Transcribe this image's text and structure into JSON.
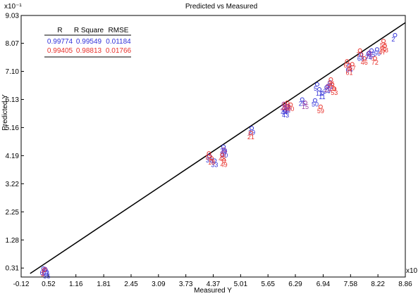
{
  "chart_data": {
    "type": "scatter",
    "title": "Predicted vs Measured",
    "xlabel": "Measured Y",
    "ylabel": "Predicted Y",
    "x_exponent": "x10",
    "y_exponent": "x10⁻¹",
    "xlim": [
      -0.12,
      8.86
    ],
    "ylim": [
      0,
      9.03
    ],
    "x_ticks": [
      "-0.12",
      "0.52",
      "1.16",
      "1.81",
      "2.45",
      "3.09",
      "3.73",
      "4.37",
      "5.01",
      "5.65",
      "6.29",
      "6.94",
      "7.58",
      "8.22",
      "8.86"
    ],
    "y_ticks": [
      "0.31",
      "1.28",
      "2.25",
      "3.22",
      "4.19",
      "5.16",
      "6.13",
      "7.10",
      "8.07",
      "9.03"
    ],
    "grid": false,
    "fit_line": {
      "x": [
        0.09,
        8.86
      ],
      "y": [
        0.12,
        8.78
      ]
    },
    "stats_table": {
      "headers": [
        "R",
        "R Square",
        "RMSE"
      ],
      "rows": [
        {
          "values": [
            "0.99774",
            "0.99549",
            "0.01184"
          ],
          "color": "#3030d8"
        },
        {
          "values": [
            "0.99405",
            "0.98813",
            "0.01766"
          ],
          "color": "#e8302a"
        }
      ]
    },
    "series": [
      {
        "color": "#3030d8",
        "points": [
          {
            "x": 0.4,
            "y": 0.29,
            "label": "6"
          },
          {
            "x": 0.45,
            "y": 0.25,
            "label": "51"
          },
          {
            "x": 0.48,
            "y": 0.17,
            "label": "35"
          },
          {
            "x": 4.28,
            "y": 4.18,
            "label": "32"
          },
          {
            "x": 4.4,
            "y": 4.02,
            "label": "33"
          },
          {
            "x": 4.61,
            "y": 4.5,
            "label": "20"
          },
          {
            "x": 4.63,
            "y": 4.34,
            "label": "30"
          },
          {
            "x": 5.27,
            "y": 5.14,
            "label": "39"
          },
          {
            "x": 6.03,
            "y": 5.82,
            "label": "44"
          },
          {
            "x": 6.06,
            "y": 5.73,
            "label": "43"
          },
          {
            "x": 6.09,
            "y": 5.9,
            "label": "41"
          },
          {
            "x": 6.45,
            "y": 6.13,
            "label": "25"
          },
          {
            "x": 6.75,
            "y": 6.1,
            "label": "50"
          },
          {
            "x": 6.8,
            "y": 6.65,
            "label": "5"
          },
          {
            "x": 6.85,
            "y": 6.48,
            "label": "12"
          },
          {
            "x": 6.92,
            "y": 6.36,
            "label": "11"
          },
          {
            "x": 7.02,
            "y": 6.55,
            "label": "34"
          },
          {
            "x": 7.1,
            "y": 6.72,
            "label": "31"
          },
          {
            "x": 7.55,
            "y": 7.3,
            "label": "64"
          },
          {
            "x": 7.82,
            "y": 7.68,
            "label": "68"
          },
          {
            "x": 8.0,
            "y": 7.72,
            "label": "74"
          },
          {
            "x": 8.07,
            "y": 7.82,
            "label": "65"
          },
          {
            "x": 8.2,
            "y": 7.86,
            "label": "56"
          },
          {
            "x": 8.62,
            "y": 8.35,
            "label": "2"
          }
        ]
      },
      {
        "color": "#e8302a",
        "points": [
          {
            "x": 0.42,
            "y": 0.24,
            "label": "3"
          },
          {
            "x": 4.27,
            "y": 4.27,
            "label": "52"
          },
          {
            "x": 4.33,
            "y": 4.1,
            "label": "18"
          },
          {
            "x": 4.58,
            "y": 4.22,
            "label": "48"
          },
          {
            "x": 4.62,
            "y": 4.02,
            "label": "49"
          },
          {
            "x": 5.25,
            "y": 4.98,
            "label": "21"
          },
          {
            "x": 6.05,
            "y": 5.97,
            "label": "42"
          },
          {
            "x": 6.1,
            "y": 6.02,
            "label": "38"
          },
          {
            "x": 6.18,
            "y": 5.95,
            "label": "40"
          },
          {
            "x": 6.88,
            "y": 5.88,
            "label": "59"
          },
          {
            "x": 7.12,
            "y": 6.82,
            "label": "26"
          },
          {
            "x": 7.15,
            "y": 6.65,
            "label": "19"
          },
          {
            "x": 7.2,
            "y": 6.5,
            "label": "53"
          },
          {
            "x": 7.5,
            "y": 7.45,
            "label": "63"
          },
          {
            "x": 7.55,
            "y": 7.2,
            "label": "61"
          },
          {
            "x": 7.62,
            "y": 7.35,
            "label": "67"
          },
          {
            "x": 7.8,
            "y": 7.82,
            "label": "70"
          },
          {
            "x": 7.9,
            "y": 7.55,
            "label": "46"
          },
          {
            "x": 8.15,
            "y": 7.55,
            "label": "72"
          },
          {
            "x": 8.35,
            "y": 8.15,
            "label": "55"
          },
          {
            "x": 8.38,
            "y": 7.98,
            "label": "58"
          },
          {
            "x": 8.32,
            "y": 7.9,
            "label": "47"
          }
        ]
      },
      {
        "color": "#a040a0",
        "points": [
          {
            "x": 0.44,
            "y": 0.28,
            "label": "1"
          },
          {
            "x": 4.62,
            "y": 4.4,
            "label": "37"
          },
          {
            "x": 6.02,
            "y": 5.98,
            "label": "28"
          },
          {
            "x": 6.12,
            "y": 5.9,
            "label": "27"
          },
          {
            "x": 6.52,
            "y": 6.02,
            "label": "15"
          },
          {
            "x": 7.05,
            "y": 6.6,
            "label": "29"
          },
          {
            "x": 8.02,
            "y": 7.75,
            "label": "75"
          }
        ]
      }
    ]
  }
}
